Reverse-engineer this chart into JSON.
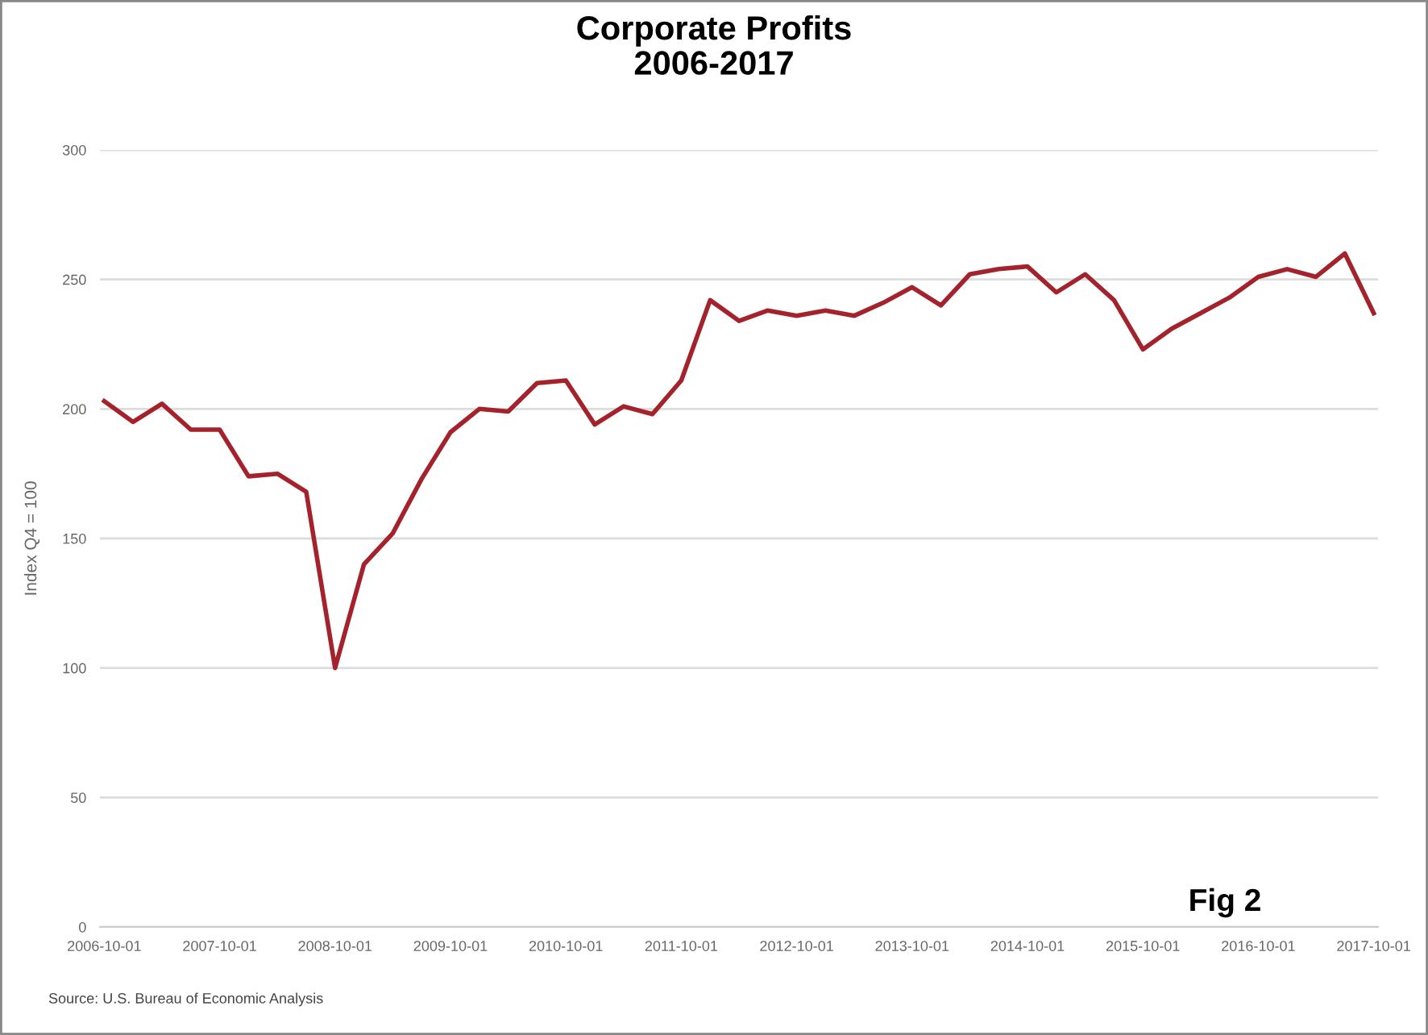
{
  "chart_data": {
    "type": "line",
    "title": "Corporate Profits\n2006-2017",
    "ylabel": "Index Q4 = 100",
    "categories": [
      "2006-10-01",
      null,
      null,
      null,
      "2007-10-01",
      null,
      null,
      null,
      "2008-10-01",
      null,
      null,
      null,
      "2009-10-01",
      null,
      null,
      null,
      "2010-10-01",
      null,
      null,
      null,
      "2011-10-01",
      null,
      null,
      null,
      "2012-10-01",
      null,
      null,
      null,
      "2013-10-01",
      null,
      null,
      null,
      "2014-10-01",
      null,
      null,
      null,
      "2015-10-01",
      null,
      null,
      null,
      "2016-10-01",
      null,
      null,
      null,
      "2017-10-01"
    ],
    "values": [
      203,
      195,
      202,
      192,
      192,
      174,
      175,
      168,
      100,
      140,
      152,
      173,
      191,
      200,
      199,
      210,
      211,
      194,
      201,
      198,
      211,
      242,
      234,
      238,
      236,
      238,
      236,
      241,
      247,
      240,
      252,
      254,
      255,
      245,
      252,
      242,
      223,
      231,
      237,
      243,
      251,
      254,
      251,
      260,
      237
    ],
    "color": "#a3222c",
    "ylim": [
      0,
      300
    ],
    "yticks": [
      0,
      50,
      100,
      150,
      200,
      250,
      300
    ],
    "grid": "y",
    "marker": "none",
    "line_style": "solid",
    "annotations": [
      "Fig 2",
      "Source: U.S. Bureau of Economic Analysis"
    ]
  }
}
